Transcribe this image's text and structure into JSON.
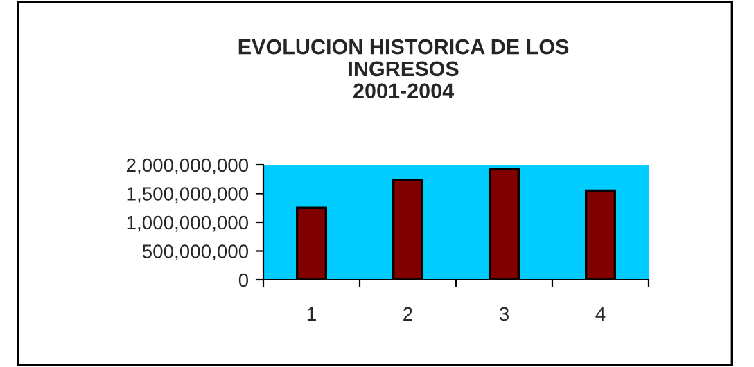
{
  "chart_data": {
    "type": "bar",
    "title": "EVOLUCION HISTORICA DE LOS\nINGRESOS\n2001-2004",
    "categories": [
      "1",
      "2",
      "3",
      "4"
    ],
    "series": [
      {
        "color": "#800000",
        "values": [
          1250000000,
          1730000000,
          1930000000,
          1550000000
        ]
      }
    ],
    "ylim": [
      0,
      2000000000
    ],
    "yticks": [
      {
        "value": 0,
        "label": "0"
      },
      {
        "value": 500000000,
        "label": "500,000,000"
      },
      {
        "value": 1000000000,
        "label": "1,000,000,000"
      },
      {
        "value": 1500000000,
        "label": "1,500,000,000"
      },
      {
        "value": 2000000000,
        "label": "2,000,000,000"
      }
    ],
    "grid": false,
    "legend": false
  }
}
